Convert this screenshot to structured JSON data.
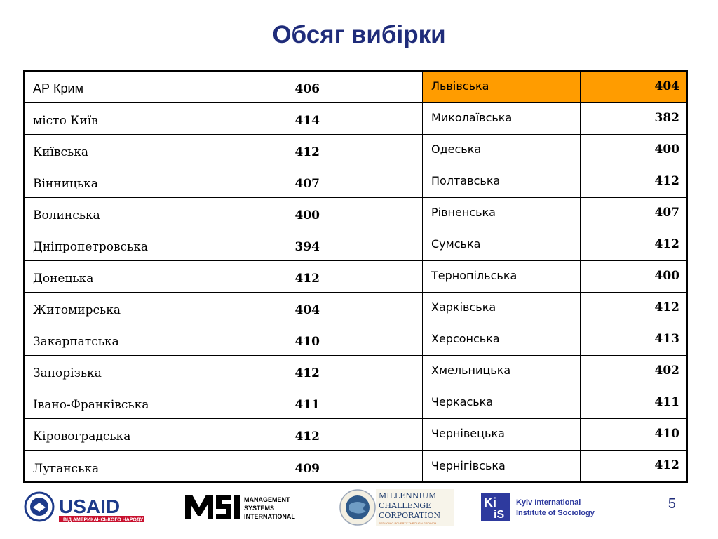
{
  "title": "Обсяг вибірки",
  "colors": {
    "title": "#1f2c7a",
    "highlight": "#ff9c00",
    "usaid_blue": "#1d3a8a",
    "usaid_red": "#c8102e"
  },
  "left_rows": [
    {
      "name": "АР Крим",
      "value": "406"
    },
    {
      "name": "місто Київ",
      "value": "414"
    },
    {
      "name": "Київська",
      "value": "412"
    },
    {
      "name": "Вінницька",
      "value": "407"
    },
    {
      "name": "Волинська",
      "value": "400"
    },
    {
      "name": "Дніпропетровська",
      "value": "394"
    },
    {
      "name": "Донецька",
      "value": "412"
    },
    {
      "name": "Житомирська",
      "value": "404"
    },
    {
      "name": "Закарпатська",
      "value": "410"
    },
    {
      "name": "Запорізька",
      "value": "412"
    },
    {
      "name": "Івано-Франківська",
      "value": "411"
    },
    {
      "name": "Кіровоградська",
      "value": "412"
    },
    {
      "name": "Луганська",
      "value": "409"
    }
  ],
  "right_rows": [
    {
      "name": "Львівська",
      "value": "404",
      "highlight": true
    },
    {
      "name": "Миколаївська",
      "value": "382"
    },
    {
      "name": "Одеська",
      "value": "400"
    },
    {
      "name": "Полтавська",
      "value": "412"
    },
    {
      "name": "Рівненська",
      "value": "407"
    },
    {
      "name": "Сумська",
      "value": "412"
    },
    {
      "name": "Тернопільська",
      "value": "400"
    },
    {
      "name": "Харківська",
      "value": "412"
    },
    {
      "name": "Херсонська",
      "value": "413"
    },
    {
      "name": "Хмельницька",
      "value": "402"
    },
    {
      "name": "Черкаська",
      "value": "411"
    },
    {
      "name": "Чернівецька",
      "value": "410"
    },
    {
      "name": "Чернігівська",
      "value": "412"
    }
  ],
  "logos": {
    "usaid": {
      "name": "USAID",
      "tagline": "ВІД АМЕРИКАНСЬКОГО НАРОДУ"
    },
    "msi": {
      "line1": "MANAGEMENT",
      "line2": "SYSTEMS",
      "line3": "INTERNATIONAL"
    },
    "mcc": {
      "line1": "MILLENNIUM",
      "line2": "CHALLENGE",
      "line3": "CORPORATION",
      "tagline": "REDUCING POVERTY THROUGH GROWTH"
    },
    "kiis": {
      "line1": "Kyiv International",
      "line2": "Institute of Sociology"
    }
  },
  "page_number": "5"
}
